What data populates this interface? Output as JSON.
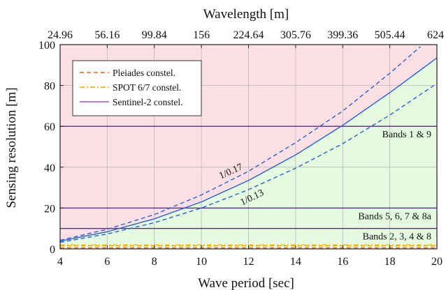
{
  "chart_data": {
    "type": "line",
    "top_axis": {
      "label": "Wavelength [m]",
      "ticks": [
        {
          "at_period": 4,
          "label": "24.96"
        },
        {
          "at_period": 6,
          "label": "56.16"
        },
        {
          "at_period": 8,
          "label": "99.84"
        },
        {
          "at_period": 10,
          "label": "156"
        },
        {
          "at_period": 12,
          "label": "224.64"
        },
        {
          "at_period": 14,
          "label": "305.76"
        },
        {
          "at_period": 16,
          "label": "399.36"
        },
        {
          "at_period": 18,
          "label": "505.44"
        },
        {
          "at_period": 20,
          "label": "624"
        }
      ]
    },
    "xlabel": "Wave period [sec]",
    "ylabel": "Sensing resolution [m]",
    "xlim": [
      4,
      20
    ],
    "ylim": [
      0,
      100
    ],
    "xticks": [
      4,
      6,
      8,
      10,
      12,
      14,
      16,
      18,
      20
    ],
    "yticks": [
      0,
      20,
      40,
      60,
      80,
      100
    ],
    "grid": true,
    "legend": {
      "position": "top-left",
      "entries": [
        {
          "label": "Pleiades constel.",
          "color": "#e8601c",
          "style": "dashed"
        },
        {
          "label": "SPOT 6/7 constel.",
          "color": "#f0a500",
          "style": "dashdot"
        },
        {
          "label": "Sentinel-2 constel.",
          "color": "#a050c8",
          "style": "solid"
        }
      ]
    },
    "background": {
      "above_color": "#fde0e6",
      "below_color": "#e4fbe0"
    },
    "curves": [
      {
        "label": "1/0.17",
        "color": "#2a5fcf",
        "style": "dashed",
        "x": [
          4,
          6,
          8,
          10,
          12,
          14,
          16,
          18,
          19.3
        ],
        "y": [
          4.2,
          9.6,
          16.8,
          26.4,
          38,
          52,
          67.5,
          86,
          99
        ]
      },
      {
        "label": "",
        "color": "#2a5fcf",
        "style": "solid",
        "x": [
          4,
          6,
          8,
          10,
          12,
          14,
          16,
          18,
          20
        ],
        "y": [
          3.8,
          8.4,
          14.7,
          23,
          33.5,
          46,
          60.5,
          76.5,
          93.5
        ]
      },
      {
        "label": "1/0.13",
        "color": "#2a5fcf",
        "style": "dashed",
        "x": [
          4,
          6,
          8,
          10,
          12,
          14,
          16,
          18,
          20
        ],
        "y": [
          3.2,
          7.3,
          12.8,
          20,
          29,
          39.5,
          51.5,
          65.5,
          81
        ]
      }
    ],
    "horizontal_lines": [
      {
        "y": 60,
        "color": "#5a2a8a",
        "style": "solid",
        "label": "Bands 1 & 9"
      },
      {
        "y": 20,
        "color": "#5a2a8a",
        "style": "solid",
        "label": "Bands 5, 6, 7 & 8a"
      },
      {
        "y": 10,
        "color": "#5a2a8a",
        "style": "solid",
        "label": "Bands 2, 3, 4 & 8"
      },
      {
        "y": 2,
        "color": "#f0c000",
        "style": "dashdot",
        "label": ""
      },
      {
        "y": 1.5,
        "color": "#f0a500",
        "style": "dashed",
        "label": ""
      },
      {
        "y": 0.5,
        "color": "#e8601c",
        "style": "dashed",
        "label": ""
      }
    ]
  }
}
